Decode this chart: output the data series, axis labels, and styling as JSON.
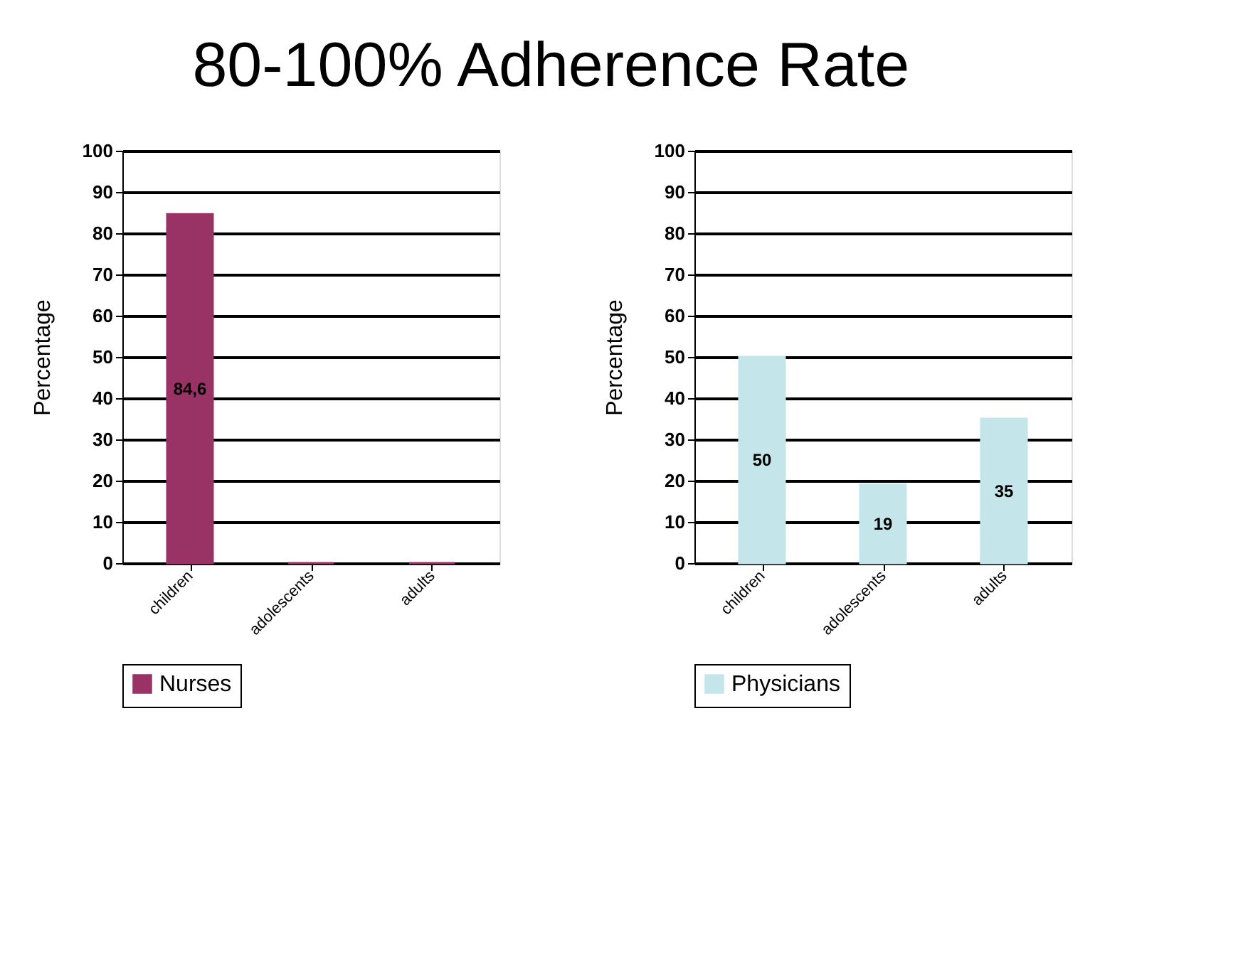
{
  "chart_data": [
    {
      "type": "bar",
      "title": "80-100% Adherence Rate",
      "ylabel": "Percentage",
      "categories": [
        "children",
        "adolescents",
        "adults"
      ],
      "ylim": [
        0,
        100
      ],
      "yticks": [
        0,
        10,
        20,
        30,
        40,
        50,
        60,
        70,
        80,
        90,
        100
      ],
      "grid": "y",
      "legend": "bottom",
      "series": [
        {
          "name": "Nurses",
          "color": "#993366",
          "values": [
            84.6,
            0,
            0
          ],
          "value_labels": [
            "84,6",
            null,
            null
          ]
        }
      ]
    },
    {
      "type": "bar",
      "ylabel": "Percentage",
      "categories": [
        "children",
        "adolescents",
        "adults"
      ],
      "ylim": [
        0,
        100
      ],
      "yticks": [
        0,
        10,
        20,
        30,
        40,
        50,
        60,
        70,
        80,
        90,
        100
      ],
      "grid": "y",
      "legend": "bottom",
      "series": [
        {
          "name": "Physicians",
          "color": "#c4e6ea",
          "values": [
            50,
            19,
            35
          ],
          "value_labels": [
            "50",
            "19",
            "35"
          ]
        }
      ]
    }
  ]
}
